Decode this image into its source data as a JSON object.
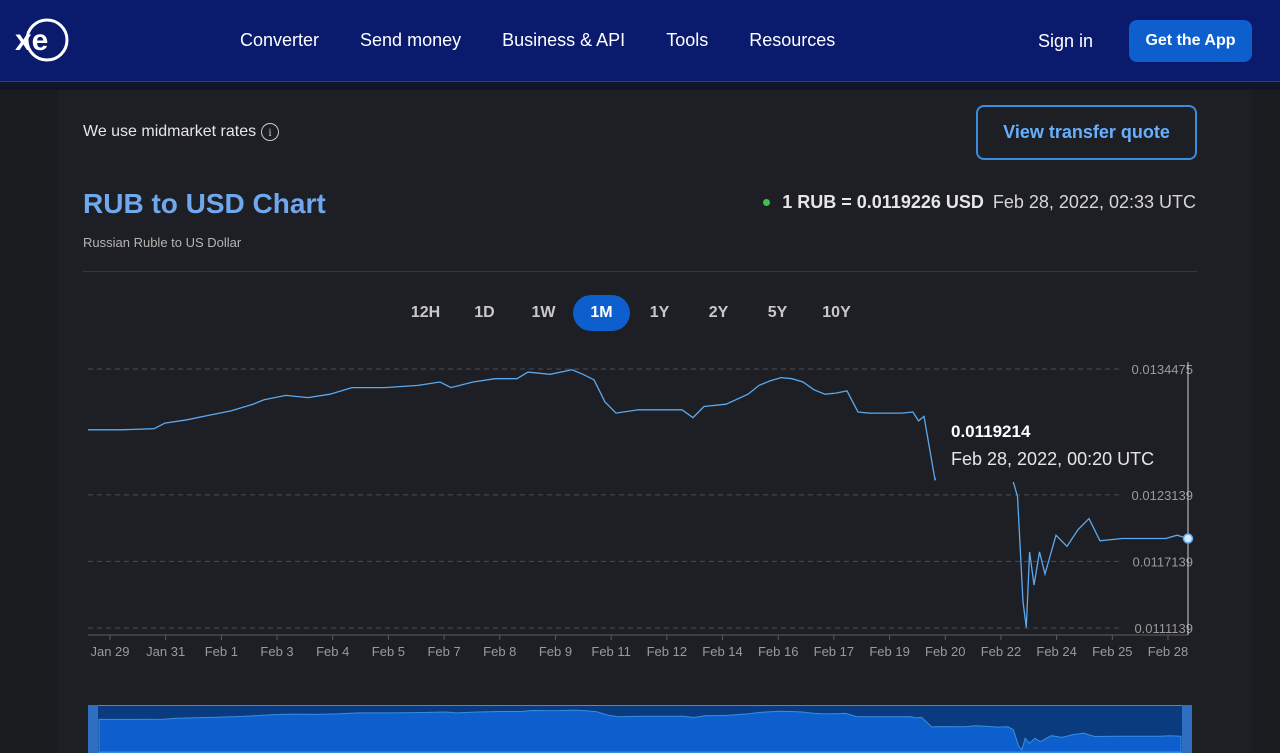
{
  "nav": {
    "logo": "xe",
    "links": [
      "Converter",
      "Send money",
      "Business & API",
      "Tools",
      "Resources"
    ],
    "signin": "Sign in",
    "get_app": "Get the App"
  },
  "midmarket": {
    "text": "We use midmarket rates",
    "info_icon": "info-icon"
  },
  "quote_button": "View transfer quote",
  "header": {
    "title": "RUB to USD Chart",
    "subtitle": "Russian Ruble to US Dollar",
    "rate": "1 RUB = 0.0119226 USD",
    "timestamp": "Feb 28, 2022, 02:33 UTC"
  },
  "ranges": {
    "items": [
      "12H",
      "1D",
      "1W",
      "1M",
      "1Y",
      "2Y",
      "5Y",
      "10Y"
    ],
    "active": "1M"
  },
  "tooltip": {
    "value": "0.0119214",
    "time": "Feb 28, 2022, 00:20 UTC"
  },
  "colors": {
    "accent": "#0d5fcd",
    "line": "#5aa9f0",
    "nav": "#0a1a6d",
    "title": "#6fa8ee",
    "live": "#3fbf4f"
  },
  "chart_data": {
    "type": "line",
    "y_ticks": [
      "0.0134475",
      "0.0123139",
      "0.0117139",
      "0.0111139"
    ],
    "x_labels": [
      "Jan 29",
      "Jan 31",
      "Feb 1",
      "Feb 3",
      "Feb 4",
      "Feb 5",
      "Feb 7",
      "Feb 8",
      "Feb 9",
      "Feb 11",
      "Feb 12",
      "Feb 14",
      "Feb 16",
      "Feb 17",
      "Feb 19",
      "Feb 20",
      "Feb 22",
      "Feb 24",
      "Feb 25",
      "Feb 28"
    ],
    "ylim": [
      0.0111139,
      0.0134475
    ],
    "series": [
      {
        "values": [
          [
            0,
            0.0129
          ],
          [
            3,
            0.0129
          ],
          [
            6,
            0.01291
          ],
          [
            7,
            0.01296
          ],
          [
            9,
            0.01299
          ],
          [
            11,
            0.01303
          ],
          [
            13,
            0.01307
          ],
          [
            15,
            0.01313
          ],
          [
            16,
            0.01317
          ],
          [
            18,
            0.01321
          ],
          [
            20,
            0.01319
          ],
          [
            22,
            0.01322
          ],
          [
            24,
            0.01328
          ],
          [
            27,
            0.01328
          ],
          [
            30,
            0.0133
          ],
          [
            32,
            0.01333
          ],
          [
            33,
            0.01328
          ],
          [
            35,
            0.01333
          ],
          [
            37,
            0.01336
          ],
          [
            39,
            0.01336
          ],
          [
            40,
            0.01342
          ],
          [
            42,
            0.0134
          ],
          [
            44,
            0.01344
          ],
          [
            45,
            0.0134
          ],
          [
            46,
            0.01335
          ],
          [
            47,
            0.01315
          ],
          [
            48,
            0.01305
          ],
          [
            50,
            0.01308
          ],
          [
            52,
            0.01308
          ],
          [
            54,
            0.01308
          ],
          [
            55,
            0.01301
          ],
          [
            56,
            0.01311
          ],
          [
            58,
            0.01313
          ],
          [
            60,
            0.01322
          ],
          [
            61,
            0.0133
          ],
          [
            62,
            0.01334
          ],
          [
            63,
            0.01337
          ],
          [
            64,
            0.01336
          ],
          [
            65,
            0.01333
          ],
          [
            66,
            0.01326
          ],
          [
            67,
            0.01322
          ],
          [
            68,
            0.01323
          ],
          [
            69,
            0.01325
          ],
          [
            70,
            0.01306
          ],
          [
            71,
            0.01305
          ],
          [
            73,
            0.01305
          ],
          [
            74,
            0.01305
          ],
          [
            75,
            0.01306
          ],
          [
            75.5,
            0.01298
          ],
          [
            76,
            0.01302
          ],
          [
            77,
            0.01245
          ],
          [
            77.3,
            0.01248
          ],
          [
            80,
            0.01247
          ],
          [
            81,
            0.01253
          ],
          [
            82,
            0.0125
          ],
          [
            83,
            0.01245
          ],
          [
            84,
            0.01247
          ],
          [
            84.5,
            0.0123
          ],
          [
            85,
            0.01135
          ],
          [
            85.3,
            0.01112
          ],
          [
            85.6,
            0.0118
          ],
          [
            86,
            0.0115
          ],
          [
            86.5,
            0.0118
          ],
          [
            87,
            0.0116
          ],
          [
            88,
            0.01195
          ],
          [
            89,
            0.01185
          ],
          [
            90,
            0.012
          ],
          [
            91,
            0.0121
          ],
          [
            92,
            0.0119
          ],
          [
            94,
            0.01192
          ],
          [
            96,
            0.01192
          ],
          [
            98,
            0.01192
          ],
          [
            99,
            0.01195
          ],
          [
            100,
            0.01192
          ]
        ]
      }
    ],
    "grid": "horizontal dashed",
    "legend": "none"
  }
}
